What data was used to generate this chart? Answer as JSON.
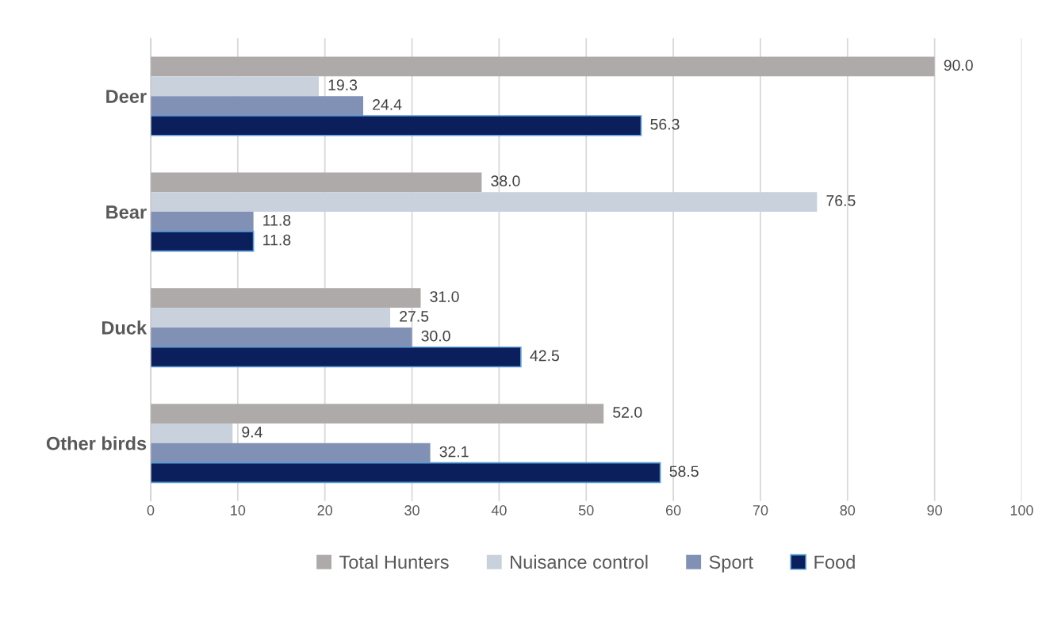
{
  "chart_data": {
    "type": "bar",
    "orientation": "horizontal",
    "categories": [
      "Deer",
      "Bear",
      "Duck",
      "Other birds"
    ],
    "series": [
      {
        "name": "Total Hunters",
        "color": "#aeaaaa",
        "values": [
          90,
          38,
          31,
          52
        ],
        "value_labels": [
          "90.0",
          "38.0",
          "31.0",
          "52.0"
        ]
      },
      {
        "name": "Nuisance control",
        "color": "#c9d1dd",
        "values": [
          19.3,
          76.5,
          27.5,
          9.4
        ],
        "value_labels": [
          "19.3",
          "76.5",
          "27.5",
          "9.4"
        ]
      },
      {
        "name": "Sport",
        "color": "#8091b5",
        "values": [
          24.4,
          11.8,
          30,
          32.1
        ],
        "value_labels": [
          "24.4",
          "11.8",
          "30.0",
          "32.1"
        ]
      },
      {
        "name": "Food",
        "color": "#0b1f5c",
        "values": [
          56.3,
          11.8,
          42.5,
          58.5
        ],
        "value_labels": [
          "56.3",
          "11.8",
          "42.5",
          "58.5"
        ]
      }
    ],
    "xlim": [
      0,
      100
    ],
    "xticks": [
      0,
      10,
      20,
      30,
      40,
      50,
      60,
      70,
      80,
      90,
      100
    ],
    "grid": "x",
    "legend": "bottom"
  }
}
